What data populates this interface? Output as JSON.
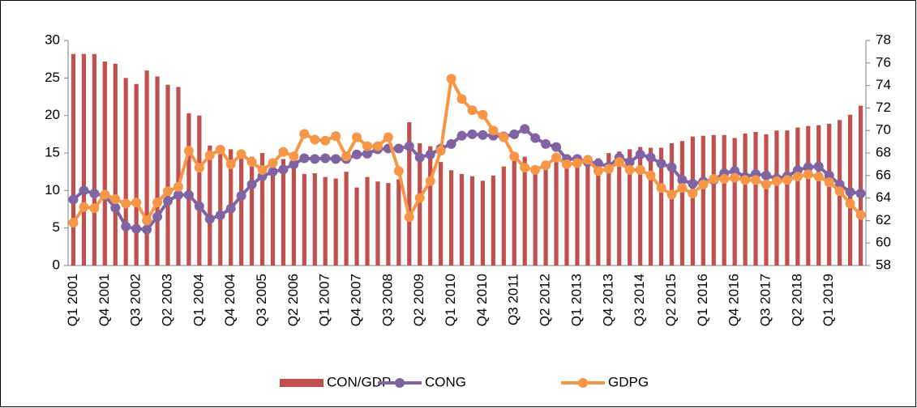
{
  "chart_data": {
    "type": "combo",
    "categories": [
      "Q1 2001",
      null,
      null,
      "Q4 2001",
      null,
      null,
      "Q3 2002",
      null,
      null,
      "Q2 2003",
      null,
      null,
      "Q1 2004",
      null,
      null,
      "Q4 2004",
      null,
      null,
      "Q3 2005",
      null,
      null,
      "Q2 2006",
      null,
      null,
      "Q1 2007",
      null,
      null,
      "Q4 2007",
      null,
      null,
      "Q3 2008",
      null,
      null,
      "Q2 2009",
      null,
      null,
      "Q1 2010",
      null,
      null,
      "Q4 2010",
      null,
      null,
      "Q3 2011",
      null,
      null,
      "Q2 2012",
      null,
      null,
      "Q1 2013",
      null,
      null,
      "Q4 2013",
      null,
      null,
      "Q3 2014",
      null,
      null,
      "Q2 2015",
      null,
      null,
      "Q1 2016",
      null,
      null,
      "Q4 2016",
      null,
      null,
      "Q3 2017",
      null,
      null,
      "Q2 2018",
      null,
      null,
      "Q1 2019",
      null,
      null,
      null
    ],
    "series": [
      {
        "name": "CON/GDP",
        "type": "bar",
        "color": "#c0504d",
        "values": [
          28.2,
          28.2,
          28.2,
          27.2,
          26.9,
          25.0,
          24.2,
          26.0,
          25.2,
          24.1,
          23.8,
          20.3,
          20.0,
          16.0,
          15.8,
          15.5,
          15.3,
          14.5,
          15.0,
          14.0,
          14.2,
          14.0,
          12.2,
          12.3,
          11.8,
          11.6,
          12.5,
          10.4,
          11.8,
          11.2,
          11.0,
          11.5,
          19.1,
          16.3,
          15.9,
          13.8,
          12.7,
          12.2,
          11.9,
          11.3,
          12.0,
          13.2,
          14.0,
          14.5,
          13.0,
          13.5,
          13.8,
          14.0,
          14.2,
          14.5,
          14.3,
          15.0,
          15.2,
          15.5,
          15.8,
          15.7,
          15.7,
          16.3,
          16.6,
          17.2,
          17.3,
          17.4,
          17.4,
          17.0,
          17.6,
          17.8,
          17.5,
          18.0,
          18.0,
          18.4,
          18.6,
          18.7,
          18.9,
          19.4,
          20.1,
          21.3
        ]
      },
      {
        "name": "CONG",
        "type": "line",
        "color": "#8064a2",
        "values": [
          8.8,
          10.0,
          9.6,
          9.3,
          7.7,
          5.2,
          4.9,
          4.8,
          6.5,
          8.6,
          9.4,
          9.4,
          7.9,
          6.2,
          6.7,
          7.6,
          9.3,
          10.8,
          11.9,
          12.5,
          12.8,
          13.5,
          14.3,
          14.2,
          14.3,
          14.2,
          14.2,
          14.8,
          14.9,
          15.5,
          15.6,
          15.6,
          15.9,
          14.4,
          14.8,
          15.6,
          16.2,
          17.3,
          17.5,
          17.4,
          17.3,
          17.2,
          17.5,
          18.2,
          17.0,
          16.2,
          15.8,
          14.2,
          14.2,
          13.8,
          13.6,
          13.2,
          14.4,
          13.8,
          14.8,
          14.4,
          13.6,
          13.1,
          11.4,
          10.9,
          11.2,
          11.4,
          12.3,
          12.6,
          11.8,
          12.2,
          12.0,
          11.6,
          11.9,
          12.7,
          13.1,
          13.2,
          12.0,
          10.8,
          9.8,
          9.6
        ]
      },
      {
        "name": "GDPG",
        "type": "line",
        "axis": "y2",
        "color": "#f79646",
        "values": [
          61.8,
          63.2,
          63.1,
          64.3,
          63.9,
          63.5,
          63.6,
          62.0,
          63.6,
          64.6,
          65.0,
          68.2,
          66.7,
          67.8,
          68.3,
          67.0,
          67.9,
          67.2,
          66.5,
          67.1,
          68.1,
          67.7,
          69.7,
          69.2,
          69.1,
          69.5,
          67.7,
          69.4,
          68.6,
          68.6,
          69.4,
          66.4,
          62.3,
          64.0,
          65.5,
          68.2,
          74.6,
          72.8,
          71.8,
          71.4,
          70.0,
          69.4,
          67.7,
          66.7,
          66.5,
          66.9,
          67.6,
          67.0,
          67.1,
          67.4,
          66.4,
          66.6,
          67.2,
          66.5,
          66.5,
          66.0,
          64.9,
          64.3,
          64.9,
          64.4,
          65.2,
          65.7,
          65.7,
          65.8,
          65.6,
          65.6,
          65.2,
          65.5,
          65.6,
          65.9,
          66.1,
          65.9,
          65.4,
          64.6,
          63.5,
          62.5
        ]
      }
    ],
    "ylim": [
      0,
      30
    ],
    "yticks": [
      0,
      5,
      10,
      15,
      20,
      25,
      30
    ],
    "y2lim": [
      58,
      78
    ],
    "y2ticks": [
      58,
      60,
      62,
      64,
      66,
      68,
      70,
      72,
      74,
      76,
      78
    ],
    "legend": "bottom"
  }
}
